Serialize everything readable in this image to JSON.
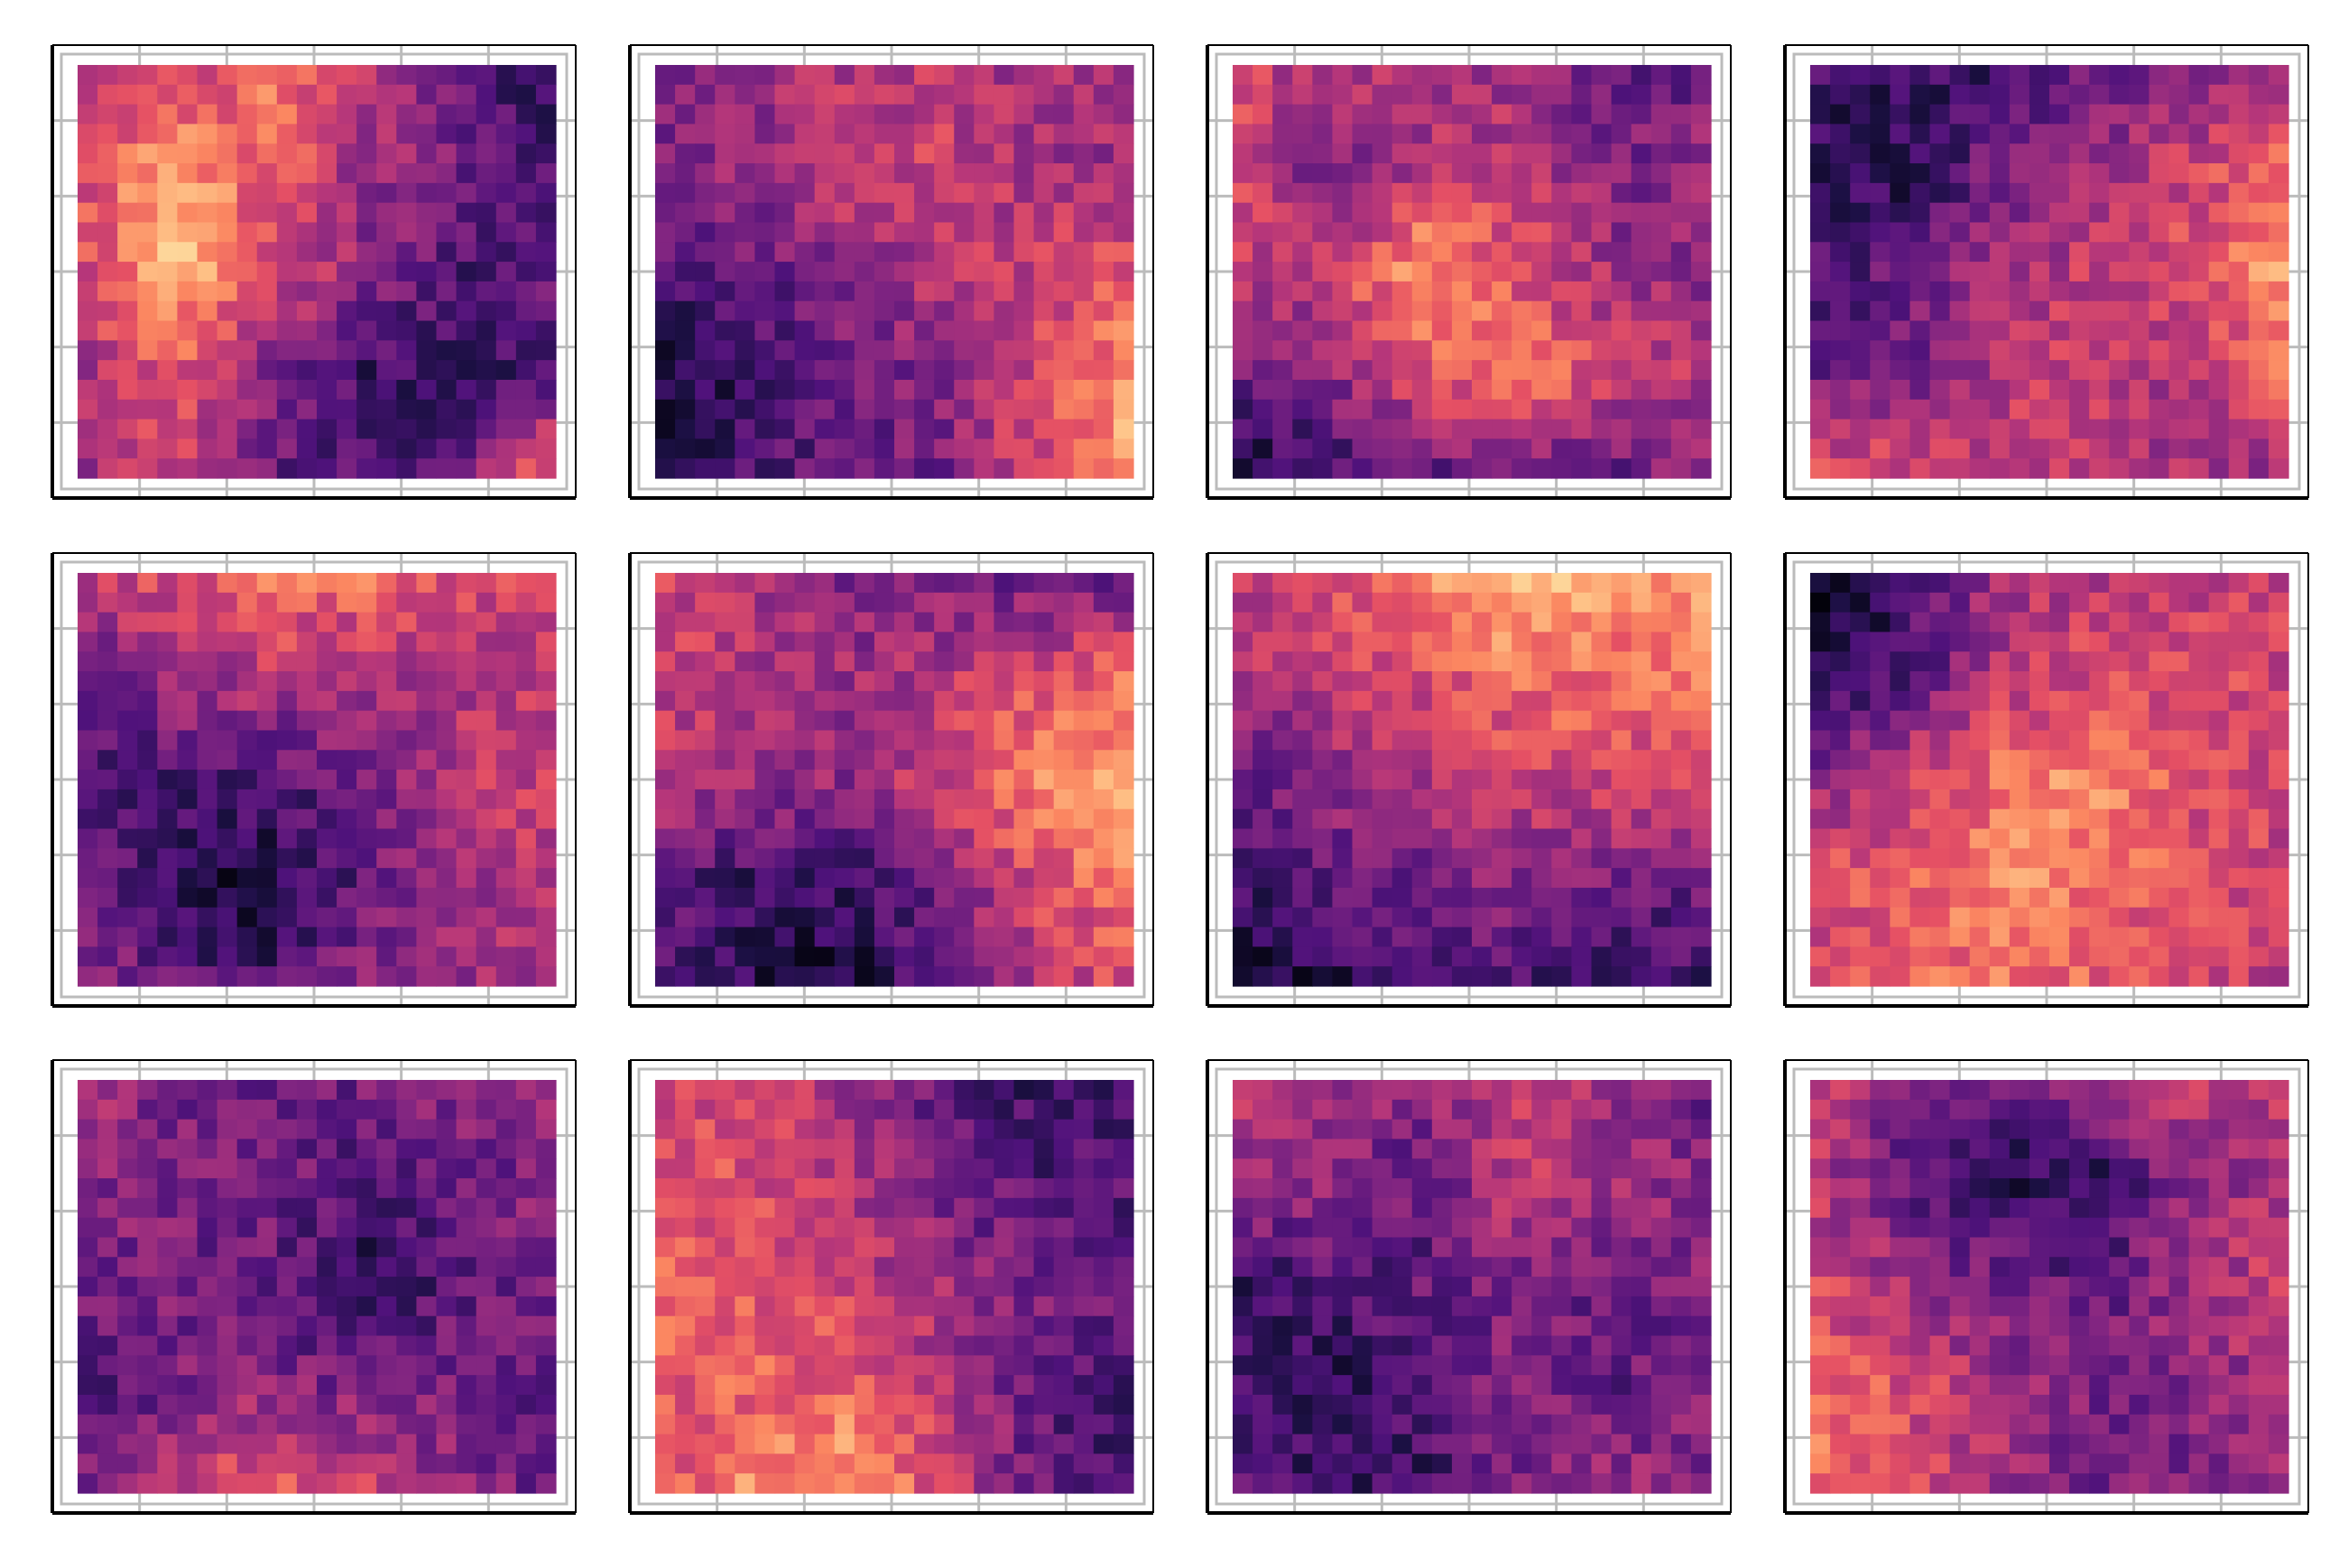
{
  "figure": {
    "layout": {
      "rows": 3,
      "cols": 4
    },
    "colormap": "magma",
    "colormap_stops": [
      "#000004",
      "#1c1044",
      "#4f127b",
      "#812581",
      "#b5367a",
      "#e55064",
      "#fb8761",
      "#fec287",
      "#fcfdbf"
    ],
    "frame_color": "#000000",
    "grid_color": "#bbbbbb"
  },
  "chart_data": [
    {
      "type": "heatmap",
      "title": "",
      "xlabel": "",
      "ylabel": "",
      "grid": true,
      "grid_nx": 24,
      "grid_ny": 21,
      "value_range": [
        0,
        1
      ],
      "seed": 11,
      "base_field": [
        [
          0.45,
          0.55,
          0.7,
          0.55,
          0.3,
          0.15
        ],
        [
          0.6,
          0.8,
          0.65,
          0.45,
          0.35,
          0.25
        ],
        [
          0.55,
          0.85,
          0.6,
          0.4,
          0.25,
          0.3
        ],
        [
          0.45,
          0.65,
          0.4,
          0.2,
          0.2,
          0.25
        ],
        [
          0.4,
          0.55,
          0.3,
          0.25,
          0.35,
          0.7
        ]
      ]
    },
    {
      "type": "heatmap",
      "title": "",
      "xlabel": "",
      "ylabel": "",
      "grid": true,
      "grid_nx": 24,
      "grid_ny": 21,
      "value_range": [
        0,
        1
      ],
      "seed": 23,
      "base_field": [
        [
          0.4,
          0.4,
          0.5,
          0.5,
          0.45,
          0.45
        ],
        [
          0.35,
          0.45,
          0.55,
          0.55,
          0.45,
          0.45
        ],
        [
          0.25,
          0.3,
          0.4,
          0.5,
          0.55,
          0.65
        ],
        [
          0.1,
          0.2,
          0.3,
          0.4,
          0.55,
          0.75
        ],
        [
          0.2,
          0.25,
          0.3,
          0.35,
          0.6,
          0.85
        ]
      ]
    },
    {
      "type": "heatmap",
      "title": "",
      "xlabel": "",
      "ylabel": "",
      "grid": true,
      "grid_nx": 24,
      "grid_ny": 21,
      "value_range": [
        0,
        1
      ],
      "seed": 37,
      "base_field": [
        [
          0.55,
          0.5,
          0.45,
          0.4,
          0.3,
          0.3
        ],
        [
          0.6,
          0.35,
          0.5,
          0.55,
          0.35,
          0.45
        ],
        [
          0.5,
          0.55,
          0.8,
          0.6,
          0.45,
          0.4
        ],
        [
          0.3,
          0.4,
          0.6,
          0.75,
          0.55,
          0.5
        ],
        [
          0.1,
          0.2,
          0.3,
          0.25,
          0.3,
          0.4
        ]
      ]
    },
    {
      "type": "heatmap",
      "title": "",
      "xlabel": "",
      "ylabel": "",
      "grid": true,
      "grid_nx": 24,
      "grid_ny": 21,
      "value_range": [
        0,
        1
      ],
      "seed": 41,
      "base_field": [
        [
          0.25,
          0.2,
          0.2,
          0.3,
          0.35,
          0.5
        ],
        [
          0.15,
          0.15,
          0.35,
          0.45,
          0.55,
          0.7
        ],
        [
          0.25,
          0.3,
          0.45,
          0.55,
          0.6,
          0.8
        ],
        [
          0.3,
          0.35,
          0.5,
          0.55,
          0.45,
          0.7
        ],
        [
          0.65,
          0.6,
          0.55,
          0.5,
          0.45,
          0.4
        ]
      ]
    },
    {
      "type": "heatmap",
      "title": "",
      "xlabel": "",
      "ylabel": "",
      "grid": true,
      "grid_nx": 24,
      "grid_ny": 21,
      "value_range": [
        0,
        1
      ],
      "seed": 53,
      "base_field": [
        [
          0.55,
          0.6,
          0.7,
          0.7,
          0.6,
          0.55
        ],
        [
          0.3,
          0.45,
          0.5,
          0.45,
          0.5,
          0.5
        ],
        [
          0.25,
          0.25,
          0.25,
          0.35,
          0.5,
          0.55
        ],
        [
          0.35,
          0.15,
          0.1,
          0.3,
          0.45,
          0.5
        ],
        [
          0.45,
          0.3,
          0.25,
          0.4,
          0.45,
          0.45
        ]
      ]
    },
    {
      "type": "heatmap",
      "title": "",
      "xlabel": "",
      "ylabel": "",
      "grid": true,
      "grid_nx": 24,
      "grid_ny": 21,
      "value_range": [
        0,
        1
      ],
      "seed": 67,
      "base_field": [
        [
          0.55,
          0.5,
          0.35,
          0.35,
          0.3,
          0.3
        ],
        [
          0.55,
          0.5,
          0.45,
          0.5,
          0.6,
          0.7
        ],
        [
          0.5,
          0.45,
          0.4,
          0.55,
          0.75,
          0.8
        ],
        [
          0.3,
          0.2,
          0.2,
          0.35,
          0.6,
          0.7
        ],
        [
          0.25,
          0.15,
          0.1,
          0.25,
          0.5,
          0.6
        ]
      ]
    },
    {
      "type": "heatmap",
      "title": "",
      "xlabel": "",
      "ylabel": "",
      "grid": true,
      "grid_nx": 24,
      "grid_ny": 21,
      "value_range": [
        0,
        1
      ],
      "seed": 71,
      "base_field": [
        [
          0.55,
          0.6,
          0.75,
          0.85,
          0.8,
          0.8
        ],
        [
          0.45,
          0.55,
          0.6,
          0.7,
          0.7,
          0.7
        ],
        [
          0.3,
          0.4,
          0.5,
          0.55,
          0.55,
          0.55
        ],
        [
          0.2,
          0.3,
          0.35,
          0.4,
          0.35,
          0.3
        ],
        [
          0.05,
          0.15,
          0.2,
          0.25,
          0.2,
          0.2
        ]
      ]
    },
    {
      "type": "heatmap",
      "title": "",
      "xlabel": "",
      "ylabel": "",
      "grid": true,
      "grid_nx": 24,
      "grid_ny": 21,
      "value_range": [
        0,
        1
      ],
      "seed": 83,
      "base_field": [
        [
          0.05,
          0.2,
          0.45,
          0.5,
          0.5,
          0.55
        ],
        [
          0.1,
          0.25,
          0.5,
          0.6,
          0.6,
          0.55
        ],
        [
          0.4,
          0.55,
          0.7,
          0.75,
          0.6,
          0.55
        ],
        [
          0.6,
          0.65,
          0.75,
          0.7,
          0.6,
          0.55
        ],
        [
          0.55,
          0.65,
          0.7,
          0.65,
          0.55,
          0.5
        ]
      ]
    },
    {
      "type": "heatmap",
      "title": "",
      "xlabel": "",
      "ylabel": "",
      "grid": true,
      "grid_nx": 24,
      "grid_ny": 21,
      "value_range": [
        0,
        1
      ],
      "seed": 97,
      "base_field": [
        [
          0.5,
          0.35,
          0.3,
          0.35,
          0.4,
          0.45
        ],
        [
          0.4,
          0.35,
          0.35,
          0.25,
          0.3,
          0.4
        ],
        [
          0.35,
          0.35,
          0.3,
          0.15,
          0.3,
          0.35
        ],
        [
          0.2,
          0.35,
          0.4,
          0.35,
          0.35,
          0.3
        ],
        [
          0.35,
          0.55,
          0.7,
          0.55,
          0.4,
          0.3
        ]
      ]
    },
    {
      "type": "heatmap",
      "title": "",
      "xlabel": "",
      "ylabel": "",
      "grid": true,
      "grid_nx": 24,
      "grid_ny": 21,
      "value_range": [
        0,
        1
      ],
      "seed": 101,
      "base_field": [
        [
          0.6,
          0.55,
          0.45,
          0.3,
          0.2,
          0.25
        ],
        [
          0.6,
          0.6,
          0.5,
          0.35,
          0.25,
          0.25
        ],
        [
          0.65,
          0.65,
          0.55,
          0.45,
          0.35,
          0.3
        ],
        [
          0.65,
          0.65,
          0.65,
          0.5,
          0.3,
          0.25
        ],
        [
          0.6,
          0.75,
          0.85,
          0.6,
          0.3,
          0.2
        ]
      ]
    },
    {
      "type": "heatmap",
      "title": "",
      "xlabel": "",
      "ylabel": "",
      "grid": true,
      "grid_nx": 24,
      "grid_ny": 21,
      "value_range": [
        0,
        1
      ],
      "seed": 113,
      "base_field": [
        [
          0.5,
          0.45,
          0.4,
          0.55,
          0.4,
          0.3
        ],
        [
          0.45,
          0.4,
          0.3,
          0.55,
          0.45,
          0.4
        ],
        [
          0.2,
          0.25,
          0.3,
          0.35,
          0.3,
          0.4
        ],
        [
          0.2,
          0.15,
          0.25,
          0.4,
          0.3,
          0.35
        ],
        [
          0.35,
          0.2,
          0.2,
          0.35,
          0.45,
          0.4
        ]
      ]
    },
    {
      "type": "heatmap",
      "title": "",
      "xlabel": "",
      "ylabel": "",
      "grid": true,
      "grid_nx": 24,
      "grid_ny": 21,
      "value_range": [
        0,
        1
      ],
      "seed": 127,
      "base_field": [
        [
          0.55,
          0.35,
          0.3,
          0.45,
          0.55,
          0.5
        ],
        [
          0.5,
          0.3,
          0.15,
          0.15,
          0.4,
          0.5
        ],
        [
          0.6,
          0.45,
          0.35,
          0.3,
          0.45,
          0.55
        ],
        [
          0.7,
          0.6,
          0.45,
          0.35,
          0.4,
          0.45
        ],
        [
          0.7,
          0.6,
          0.45,
          0.35,
          0.35,
          0.4
        ]
      ]
    }
  ]
}
